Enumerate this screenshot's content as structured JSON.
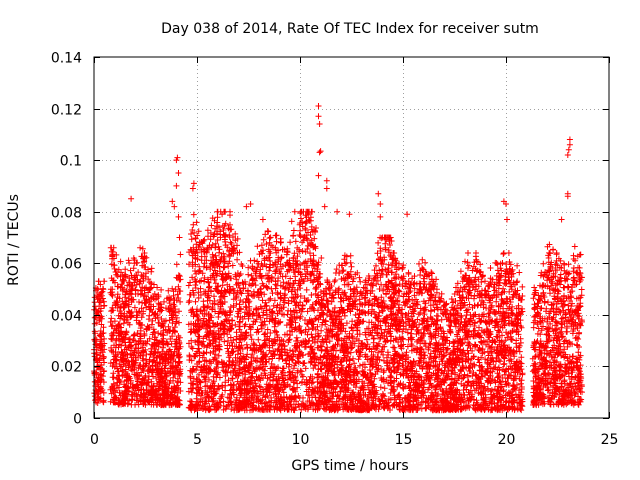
{
  "chart_data": {
    "type": "scatter",
    "title": "Day 038 of 2014, Rate Of TEC Index for receiver sutm",
    "xlabel": "GPS time / hours",
    "ylabel": "ROTI / TECUs",
    "xlim": [
      0,
      25
    ],
    "ylim": [
      0,
      0.14
    ],
    "x_ticks": [
      0,
      5,
      10,
      15,
      20,
      25
    ],
    "x_tick_labels": [
      "0",
      "5",
      "10",
      "15",
      "20",
      "25"
    ],
    "y_ticks": [
      0,
      0.02,
      0.04,
      0.06,
      0.08,
      0.1,
      0.12,
      0.14
    ],
    "y_tick_labels": [
      "0",
      "0.02",
      "0.04",
      "0.06",
      "0.08",
      "0.1",
      "0.12",
      "0.14"
    ],
    "grid": true,
    "marker": "+",
    "series_color": "#ff0000",
    "grid_color": "#a0a0a0",
    "series": [
      {
        "name": "ROTI",
        "segments": [
          {
            "x_start": 0.0,
            "x_end": 0.5,
            "y_low": 0.005,
            "y_high": 0.053
          },
          {
            "x_start": 0.8,
            "x_end": 4.2,
            "y_low": 0.005,
            "y_high": 0.066
          },
          {
            "x_start": 4.6,
            "x_end": 10.8,
            "y_low": 0.003,
            "y_high": 0.08
          },
          {
            "x_start": 10.8,
            "x_end": 14.5,
            "y_low": 0.003,
            "y_high": 0.07
          },
          {
            "x_start": 14.5,
            "x_end": 20.8,
            "y_low": 0.003,
            "y_high": 0.064
          },
          {
            "x_start": 21.3,
            "x_end": 23.7,
            "y_low": 0.005,
            "y_high": 0.068
          }
        ],
        "outliers": [
          {
            "x": 1.8,
            "y": 0.085
          },
          {
            "x": 3.8,
            "y": 0.084
          },
          {
            "x": 3.9,
            "y": 0.082
          },
          {
            "x": 4.0,
            "y": 0.1
          },
          {
            "x": 4.05,
            "y": 0.101
          },
          {
            "x": 4.1,
            "y": 0.095
          },
          {
            "x": 4.0,
            "y": 0.09
          },
          {
            "x": 4.1,
            "y": 0.078
          },
          {
            "x": 4.15,
            "y": 0.07
          },
          {
            "x": 4.8,
            "y": 0.089
          },
          {
            "x": 4.85,
            "y": 0.091
          },
          {
            "x": 6.6,
            "y": 0.08
          },
          {
            "x": 7.4,
            "y": 0.082
          },
          {
            "x": 7.6,
            "y": 0.083
          },
          {
            "x": 8.2,
            "y": 0.077
          },
          {
            "x": 10.9,
            "y": 0.121
          },
          {
            "x": 10.9,
            "y": 0.117
          },
          {
            "x": 10.95,
            "y": 0.114
          },
          {
            "x": 10.95,
            "y": 0.103
          },
          {
            "x": 11.0,
            "y": 0.1035
          },
          {
            "x": 10.9,
            "y": 0.094
          },
          {
            "x": 11.3,
            "y": 0.092
          },
          {
            "x": 11.3,
            "y": 0.089
          },
          {
            "x": 11.2,
            "y": 0.082
          },
          {
            "x": 11.8,
            "y": 0.08
          },
          {
            "x": 12.4,
            "y": 0.079
          },
          {
            "x": 13.8,
            "y": 0.087
          },
          {
            "x": 13.9,
            "y": 0.083
          },
          {
            "x": 13.9,
            "y": 0.078
          },
          {
            "x": 15.2,
            "y": 0.079
          },
          {
            "x": 19.9,
            "y": 0.084
          },
          {
            "x": 20.0,
            "y": 0.083
          },
          {
            "x": 20.05,
            "y": 0.077
          },
          {
            "x": 22.7,
            "y": 0.077
          },
          {
            "x": 23.1,
            "y": 0.108
          },
          {
            "x": 23.1,
            "y": 0.106
          },
          {
            "x": 23.05,
            "y": 0.104
          },
          {
            "x": 23.0,
            "y": 0.102
          },
          {
            "x": 23.0,
            "y": 0.087
          },
          {
            "x": 23.0,
            "y": 0.086
          }
        ]
      }
    ]
  }
}
